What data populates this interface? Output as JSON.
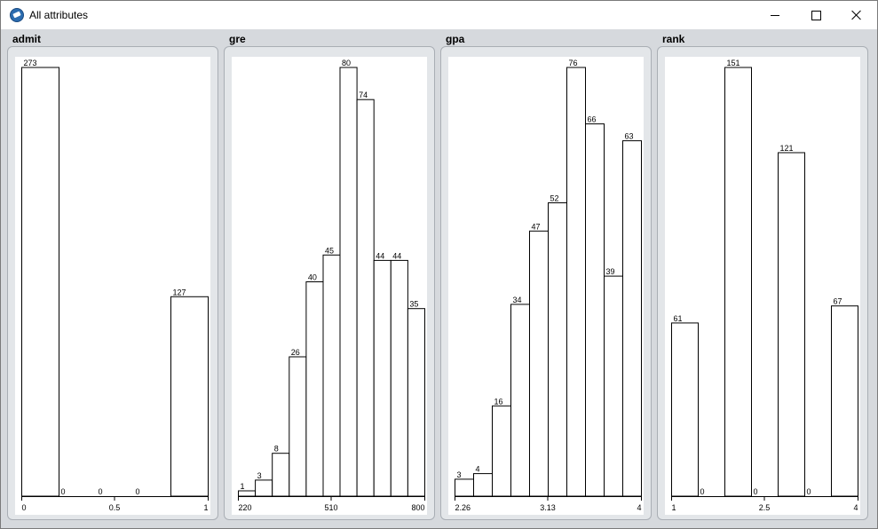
{
  "window": {
    "title": "All attributes"
  },
  "chart_data": [
    {
      "type": "bar",
      "title": "admit",
      "values": [
        273,
        0,
        0,
        0,
        127
      ],
      "xticks": [
        "0",
        "0.5",
        "1"
      ],
      "xlim": [
        0,
        1
      ],
      "ylim": [
        0,
        273
      ]
    },
    {
      "type": "bar",
      "title": "gre",
      "values": [
        1,
        3,
        8,
        26,
        40,
        45,
        80,
        74,
        44,
        44,
        35
      ],
      "xticks": [
        "220",
        "510",
        "800"
      ],
      "xlim": [
        220,
        800
      ],
      "ylim": [
        0,
        80
      ]
    },
    {
      "type": "bar",
      "title": "gpa",
      "values": [
        3,
        4,
        16,
        34,
        47,
        52,
        76,
        66,
        39,
        63
      ],
      "xticks": [
        "2.26",
        "3.13",
        "4"
      ],
      "xlim": [
        2.26,
        4
      ],
      "ylim": [
        0,
        76
      ]
    },
    {
      "type": "bar",
      "title": "rank",
      "values": [
        61,
        0,
        151,
        0,
        121,
        0,
        67
      ],
      "xticks": [
        "1",
        "2.5",
        "4"
      ],
      "xlim": [
        1,
        4
      ],
      "ylim": [
        0,
        151
      ]
    }
  ]
}
